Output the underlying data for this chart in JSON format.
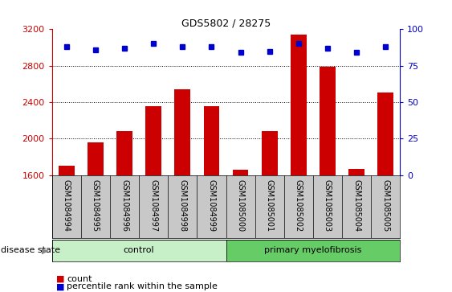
{
  "title": "GDS5802 / 28275",
  "samples": [
    "GSM1084994",
    "GSM1084995",
    "GSM1084996",
    "GSM1084997",
    "GSM1084998",
    "GSM1084999",
    "GSM1085000",
    "GSM1085001",
    "GSM1085002",
    "GSM1085003",
    "GSM1085004",
    "GSM1085005"
  ],
  "counts": [
    1700,
    1960,
    2080,
    2360,
    2540,
    2360,
    1660,
    2080,
    3140,
    2790,
    1670,
    2510
  ],
  "percentiles": [
    88,
    86,
    87,
    90,
    88,
    88,
    84,
    85,
    90,
    87,
    84,
    88
  ],
  "group_labels": [
    "control",
    "primary myelofibrosis"
  ],
  "n_control": 6,
  "n_myelof": 6,
  "group_color_control": "#c8f0c8",
  "group_color_myelof": "#66cc66",
  "bar_color": "#cc0000",
  "marker_color": "#0000cc",
  "ylim_left": [
    1600,
    3200
  ],
  "ylim_right": [
    0,
    100
  ],
  "yticks_left": [
    1600,
    2000,
    2400,
    2800,
    3200
  ],
  "yticks_right": [
    0,
    25,
    50,
    75,
    100
  ],
  "grid_values": [
    2000,
    2400,
    2800
  ],
  "tick_bg_color": "#c8c8c8",
  "disease_state_label": "disease state",
  "legend_count_label": "count",
  "legend_percentile_label": "percentile rank within the sample",
  "title_fontsize": 9,
  "axis_fontsize": 8,
  "label_fontsize": 7,
  "bar_width": 0.55
}
